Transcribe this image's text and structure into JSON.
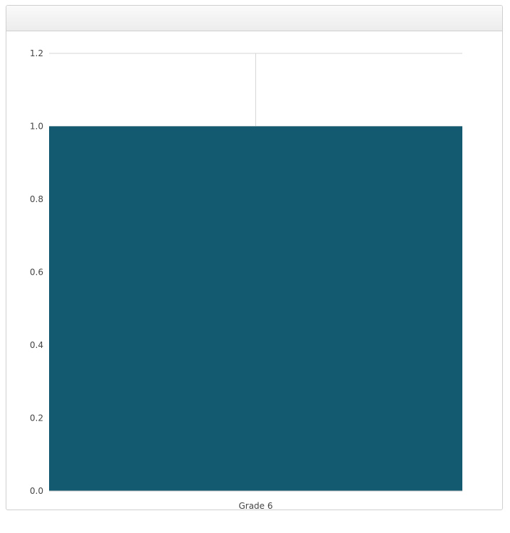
{
  "panel": {
    "title": ""
  },
  "colors": {
    "bar": "#135a70",
    "grid": "#d6d6d6",
    "axis": "#cccccc"
  },
  "chart_data": {
    "type": "bar",
    "categories": [
      "Grade 6"
    ],
    "series": [
      {
        "values": [
          1.0
        ]
      }
    ],
    "ylim": [
      0,
      1.2
    ],
    "yticks": [
      "0.0",
      "0.2",
      "0.4",
      "0.6",
      "0.8",
      "1.0",
      "1.2"
    ],
    "grid": true,
    "legend": "none"
  }
}
